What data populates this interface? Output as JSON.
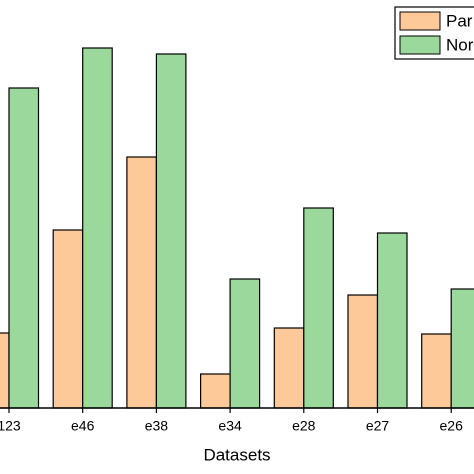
{
  "chart_data": {
    "type": "bar",
    "x_label": "Datasets",
    "categories": [
      "123",
      "e46",
      "e38",
      "e34",
      "e28",
      "e27",
      "e26"
    ],
    "series": [
      {
        "name": "Par",
        "color": "#fdc999",
        "values": [
          75,
          178,
          251,
          34,
          80,
          113,
          74
        ]
      },
      {
        "name": "Nor",
        "color": "#9bd89b",
        "values": [
          320,
          360,
          354,
          129,
          200,
          175,
          119
        ]
      }
    ]
  }
}
